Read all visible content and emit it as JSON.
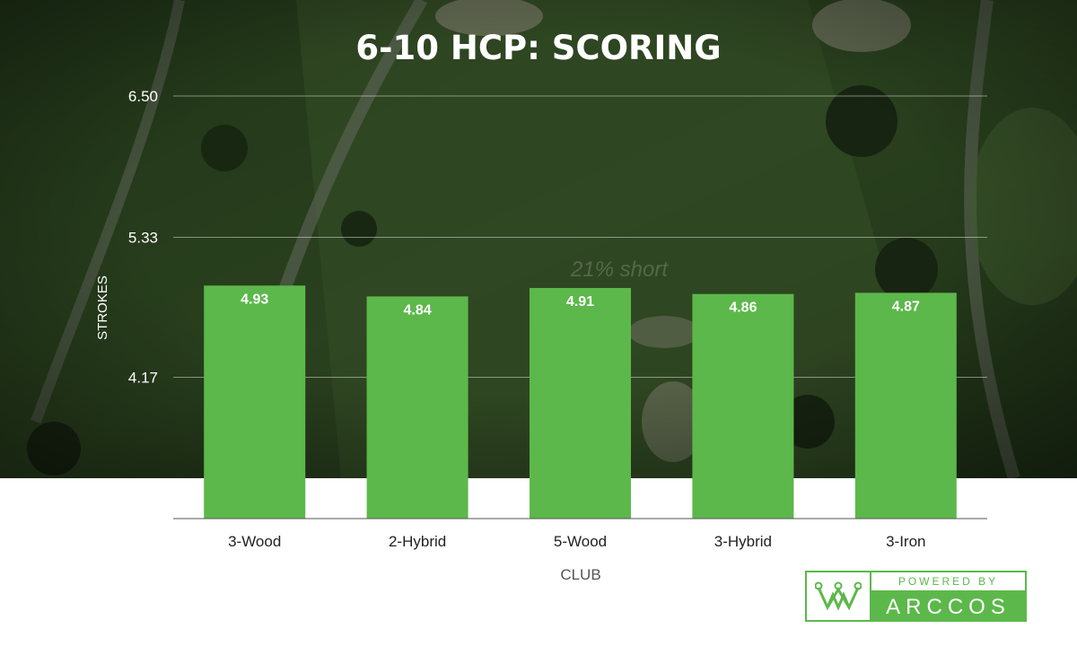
{
  "chart_data": {
    "type": "bar",
    "title": "6-10 HCP: SCORING",
    "xlabel": "CLUB",
    "ylabel": "STROKES",
    "categories": [
      "3-Wood",
      "2-Hybrid",
      "5-Wood",
      "3-Hybrid",
      "3-Iron"
    ],
    "values": [
      4.93,
      4.84,
      4.91,
      4.86,
      4.87
    ],
    "value_labels": [
      "4.93",
      "4.84",
      "4.91",
      "4.86",
      "4.87"
    ],
    "yticks": [
      4.17,
      5.33,
      6.5
    ],
    "ytick_labels": [
      "4.17",
      "5.33",
      "6.50"
    ],
    "ylim": [
      3.0,
      6.5
    ],
    "grid": true,
    "bar_color": "#5cb84a",
    "background_text": "21% short"
  },
  "logo": {
    "powered": "POWERED BY",
    "brand": "ARCCOS",
    "accent": "#5cb84a"
  }
}
